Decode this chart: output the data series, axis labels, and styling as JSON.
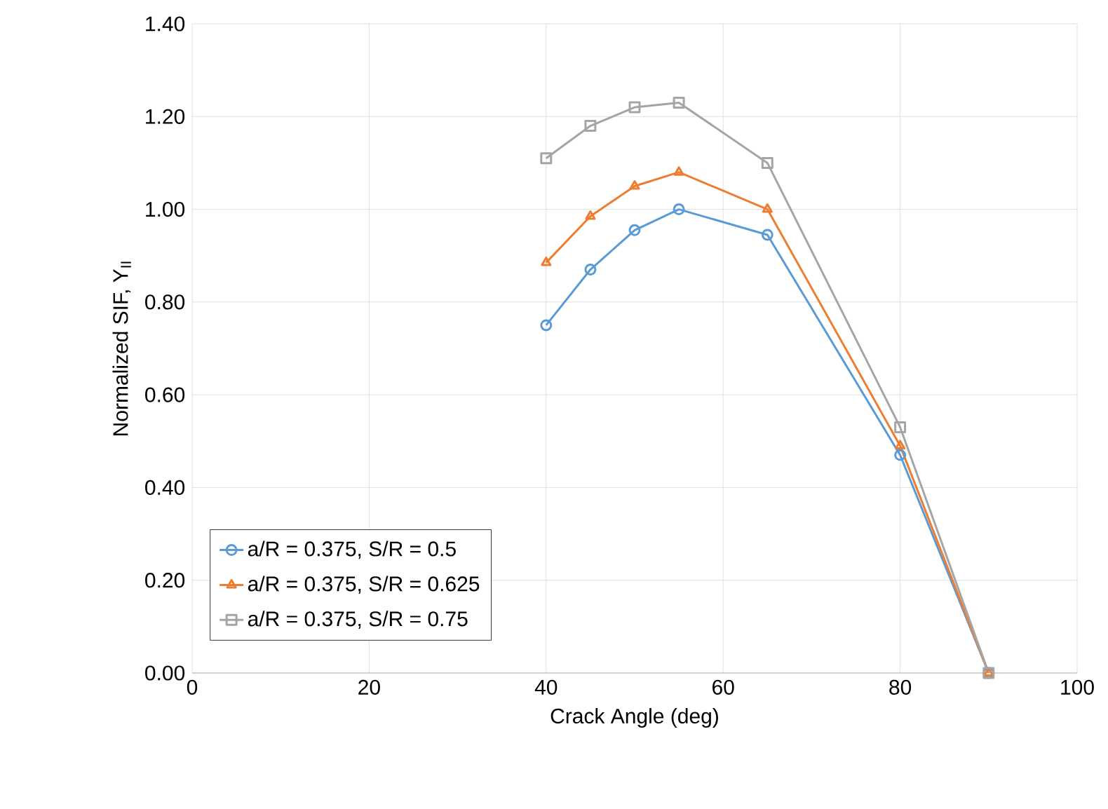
{
  "chart_data": {
    "type": "line",
    "xlabel": "Crack Angle (deg)",
    "ylabel": "Normalized SIF, Y$_{II}$",
    "x": [
      40,
      45,
      50,
      55,
      65,
      80,
      90
    ],
    "series": [
      {
        "name": "a/R = 0.375, S/R = 0.5",
        "color": "#5b9bd5",
        "marker": "circle",
        "values": [
          0.75,
          0.87,
          0.955,
          1.0,
          0.945,
          0.47,
          0.0
        ]
      },
      {
        "name": "a/R = 0.375, S/R = 0.625",
        "color": "#ed7d31",
        "marker": "triangle",
        "values": [
          0.885,
          0.985,
          1.05,
          1.08,
          1.0,
          0.49,
          0.0
        ]
      },
      {
        "name": "a/R = 0.375, S/R = 0.75",
        "color": "#a5a5a5",
        "marker": "square",
        "values": [
          1.11,
          1.18,
          1.22,
          1.23,
          1.1,
          0.53,
          0.0
        ]
      }
    ],
    "xlim": [
      0,
      100
    ],
    "xticks": [
      0,
      20,
      40,
      60,
      80,
      100
    ],
    "ylim": [
      0,
      1.4
    ],
    "yticks": [
      {
        "value": 0,
        "label": "0.00"
      },
      {
        "value": 0.2,
        "label": "0.20"
      },
      {
        "value": 0.4,
        "label": "0.40"
      },
      {
        "value": 0.6,
        "label": "0.60"
      },
      {
        "value": 0.8,
        "label": "0.80"
      },
      {
        "value": 1.0,
        "label": "1.00"
      },
      {
        "value": 1.2,
        "label": "1.20"
      },
      {
        "value": 1.4,
        "label": "1.40"
      }
    ],
    "grid": true,
    "legend": "bottom left",
    "line_style": "solid"
  }
}
